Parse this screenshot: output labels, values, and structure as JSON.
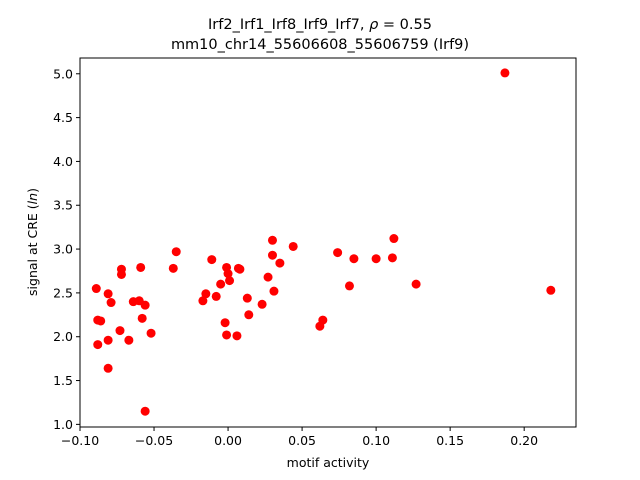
{
  "chart_data": {
    "type": "scatter",
    "title_line1": "Irf2_Irf1_Irf8_Irf9_Irf7, ",
    "title_rho_symbol": "ρ",
    "title_rho_value": " = 0.55",
    "title_line2": "mm10_chr14_55606608_55606759 (Irf9)",
    "xlabel": "motif activity",
    "ylabel_prefix": "signal at CRE (",
    "ylabel_italic": "ln",
    "ylabel_suffix": ")",
    "xlim": [
      -0.1,
      0.235
    ],
    "ylim": [
      0.97,
      5.18
    ],
    "xticks": [
      -0.1,
      -0.05,
      0.0,
      0.05,
      0.1,
      0.15,
      0.2
    ],
    "xtick_labels": [
      "−0.10",
      "−0.05",
      "0.00",
      "0.05",
      "0.10",
      "0.15",
      "0.20"
    ],
    "yticks": [
      1.0,
      1.5,
      2.0,
      2.5,
      3.0,
      3.5,
      4.0,
      4.5,
      5.0
    ],
    "ytick_labels": [
      "1.0",
      "1.5",
      "2.0",
      "2.5",
      "3.0",
      "3.5",
      "4.0",
      "4.5",
      "5.0"
    ],
    "grid": false,
    "marker_color": "#ff0000",
    "points": [
      {
        "x": 0.187,
        "y": 5.01
      },
      {
        "x": 0.218,
        "y": 2.53
      },
      {
        "x": 0.127,
        "y": 2.6
      },
      {
        "x": 0.112,
        "y": 3.12
      },
      {
        "x": 0.111,
        "y": 2.9
      },
      {
        "x": 0.1,
        "y": 2.89
      },
      {
        "x": 0.085,
        "y": 2.89
      },
      {
        "x": 0.082,
        "y": 2.58
      },
      {
        "x": 0.074,
        "y": 2.96
      },
      {
        "x": 0.064,
        "y": 2.19
      },
      {
        "x": 0.062,
        "y": 2.12
      },
      {
        "x": 0.044,
        "y": 3.03
      },
      {
        "x": 0.035,
        "y": 2.84
      },
      {
        "x": 0.031,
        "y": 2.52
      },
      {
        "x": 0.03,
        "y": 3.1
      },
      {
        "x": 0.03,
        "y": 2.93
      },
      {
        "x": 0.027,
        "y": 2.68
      },
      {
        "x": 0.023,
        "y": 2.37
      },
      {
        "x": 0.014,
        "y": 2.25
      },
      {
        "x": 0.013,
        "y": 2.44
      },
      {
        "x": 0.008,
        "y": 2.77
      },
      {
        "x": 0.007,
        "y": 2.78
      },
      {
        "x": 0.006,
        "y": 2.01
      },
      {
        "x": 0.001,
        "y": 2.64
      },
      {
        "x": 0.0,
        "y": 2.72
      },
      {
        "x": -0.001,
        "y": 2.79
      },
      {
        "x": -0.001,
        "y": 2.02
      },
      {
        "x": -0.002,
        "y": 2.16
      },
      {
        "x": -0.005,
        "y": 2.6
      },
      {
        "x": -0.008,
        "y": 2.46
      },
      {
        "x": -0.011,
        "y": 2.88
      },
      {
        "x": -0.015,
        "y": 2.49
      },
      {
        "x": -0.017,
        "y": 2.41
      },
      {
        "x": -0.035,
        "y": 2.97
      },
      {
        "x": -0.037,
        "y": 2.78
      },
      {
        "x": -0.052,
        "y": 2.04
      },
      {
        "x": -0.056,
        "y": 1.15
      },
      {
        "x": -0.056,
        "y": 2.36
      },
      {
        "x": -0.058,
        "y": 2.21
      },
      {
        "x": -0.059,
        "y": 2.79
      },
      {
        "x": -0.06,
        "y": 2.41
      },
      {
        "x": -0.064,
        "y": 2.4
      },
      {
        "x": -0.067,
        "y": 1.96
      },
      {
        "x": -0.072,
        "y": 2.77
      },
      {
        "x": -0.072,
        "y": 2.71
      },
      {
        "x": -0.073,
        "y": 2.07
      },
      {
        "x": -0.079,
        "y": 2.39
      },
      {
        "x": -0.081,
        "y": 2.49
      },
      {
        "x": -0.081,
        "y": 1.96
      },
      {
        "x": -0.081,
        "y": 1.64
      },
      {
        "x": -0.086,
        "y": 2.18
      },
      {
        "x": -0.088,
        "y": 1.91
      },
      {
        "x": -0.088,
        "y": 2.19
      },
      {
        "x": -0.089,
        "y": 2.55
      }
    ]
  }
}
